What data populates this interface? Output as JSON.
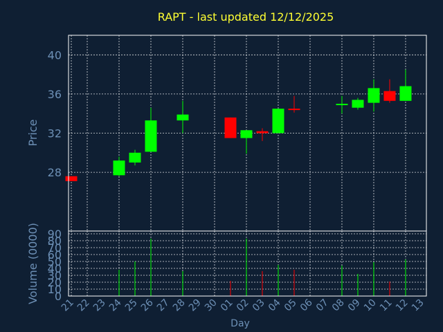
{
  "chart_data": {
    "type": "candlestick",
    "title": "RAPT - last updated 12/12/2025",
    "xlabel": "Day",
    "price_panel": {
      "ylabel": "Price",
      "ylim": [
        22,
        42
      ],
      "yticks": [
        28,
        32,
        36,
        40
      ],
      "grid": true
    },
    "volume_panel": {
      "ylabel": "Volume (0000)",
      "ylim": [
        0,
        90
      ],
      "yticks": [
        0,
        10,
        20,
        30,
        40,
        50,
        60,
        70,
        80,
        90
      ],
      "grid": true
    },
    "x_tick_labels": [
      "21",
      "22",
      "23",
      "24",
      "25",
      "26",
      "27",
      "28",
      "29",
      "30",
      "01",
      "02",
      "03",
      "04",
      "05",
      "06",
      "07",
      "08",
      "09",
      "10",
      "11",
      "12",
      "13"
    ],
    "colors": {
      "up": "#00ff00",
      "down": "#ff0000",
      "background": "#0f1f33",
      "title": "#ffff33",
      "axis_text": "#6d90b6"
    },
    "candles": [
      {
        "day": "21",
        "open": 27.6,
        "high": 27.6,
        "low": 27.1,
        "close": 27.1,
        "volume": 0
      },
      {
        "day": "24",
        "open": 27.7,
        "high": 29.6,
        "low": 27.6,
        "close": 29.2,
        "volume": 38
      },
      {
        "day": "25",
        "open": 29.0,
        "high": 30.3,
        "low": 28.7,
        "close": 30.0,
        "volume": 50
      },
      {
        "day": "26",
        "open": 30.1,
        "high": 34.6,
        "low": 30.1,
        "close": 33.3,
        "volume": 83
      },
      {
        "day": "28",
        "open": 33.3,
        "high": 35.3,
        "low": 32.0,
        "close": 33.9,
        "volume": 36
      },
      {
        "day": "01",
        "open": 33.6,
        "high": 33.6,
        "low": 31.5,
        "close": 31.5,
        "volume": 22
      },
      {
        "day": "02",
        "open": 31.5,
        "high": 32.3,
        "low": 29.9,
        "close": 32.3,
        "volume": 83
      },
      {
        "day": "03",
        "open": 32.2,
        "high": 32.5,
        "low": 31.2,
        "close": 32.0,
        "volume": 36
      },
      {
        "day": "04",
        "open": 32.0,
        "high": 34.5,
        "low": 32.0,
        "close": 34.5,
        "volume": 45
      },
      {
        "day": "05",
        "open": 34.5,
        "high": 35.8,
        "low": 34.1,
        "close": 34.4,
        "volume": 38
      },
      {
        "day": "08",
        "open": 34.9,
        "high": 35.8,
        "low": 34.0,
        "close": 35.0,
        "volume": 44
      },
      {
        "day": "09",
        "open": 34.6,
        "high": 35.6,
        "low": 34.4,
        "close": 35.4,
        "volume": 32
      },
      {
        "day": "10",
        "open": 35.1,
        "high": 37.5,
        "low": 34.2,
        "close": 36.6,
        "volume": 49
      },
      {
        "day": "11",
        "open": 36.3,
        "high": 37.5,
        "low": 35.1,
        "close": 35.3,
        "volume": 21
      },
      {
        "day": "12",
        "open": 35.3,
        "high": 38.5,
        "low": 35.3,
        "close": 36.8,
        "volume": 53
      }
    ]
  }
}
